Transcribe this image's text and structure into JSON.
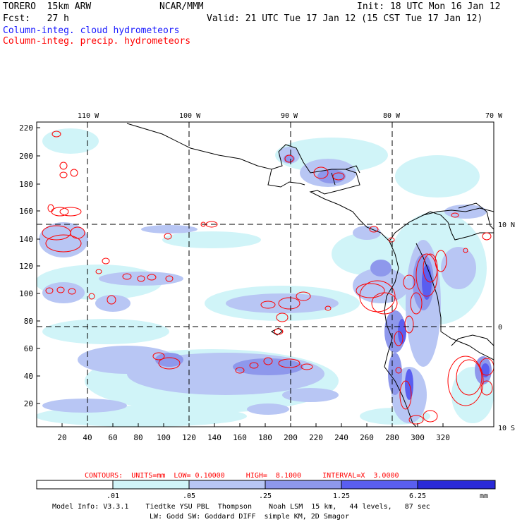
{
  "header": {
    "model": "TORERO  15km ARW",
    "forecast": "Fcst:   27 h",
    "center": "NCAR/MMM",
    "init": "Init: 18 UTC Mon 16 Jan 12",
    "valid": "Valid: 21 UTC Tue 17 Jan 12 (15 CST Tue 17 Jan 12)",
    "field1": "Column-integ. cloud hydrometeors",
    "field2": "Column-integ. precip. hydrometeors"
  },
  "lon_labels": [
    "110 W",
    "100 W",
    "90 W",
    "80 W",
    "70 W"
  ],
  "lat_labels": [
    "10 N",
    "0",
    "10 S"
  ],
  "y_ticks": [
    "220",
    "200",
    "180",
    "160",
    "140",
    "120",
    "100",
    "80",
    "60",
    "40",
    "20"
  ],
  "x_ticks": [
    "20",
    "40",
    "60",
    "80",
    "100",
    "120",
    "140",
    "160",
    "180",
    "200",
    "220",
    "240",
    "260",
    "280",
    "300",
    "320"
  ],
  "contour_info": "CONTOURS:  UNITS=mm  LOW= 0.10000     HIGH=  8.1000     INTERVAL=X  3.0000",
  "colorbar": {
    "levels": [
      ".01",
      ".05",
      ".25",
      "1.25",
      "6.25"
    ],
    "unit": "mm",
    "colors": [
      "#ffffff",
      "#d0f4f8",
      "#b8c6f4",
      "#8e98ec",
      "#5a5ef0",
      "#2a2ad8"
    ]
  },
  "footer": {
    "line1": "Model Info: V3.3.1    Tiedtke YSU PBL  Thompson    Noah LSM  15 km,   44 levels,   87 sec",
    "line2": "LW: Godd SW: Goddard DIFF  simple KM, 2D Smagor"
  }
}
